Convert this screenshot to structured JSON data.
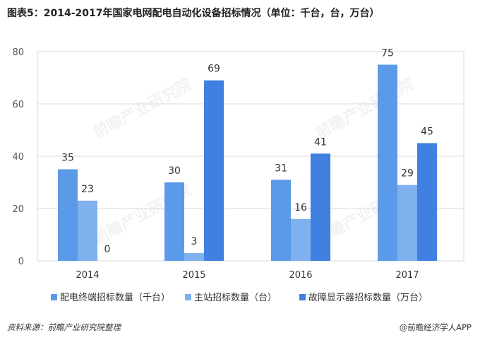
{
  "title": "图表5：2014-2017年国家电网配电自动化设备招标情况（单位：千台，台，万台）",
  "footer": {
    "source": "资料来源：前瞻产业研究院整理",
    "brand": "@前瞻经济学人APP"
  },
  "watermark": "前瞻产业研究院",
  "chart_data": {
    "type": "bar",
    "categories": [
      "2014",
      "2015",
      "2016",
      "2017"
    ],
    "series": [
      {
        "name": "配电终端招标数量（千台）",
        "values": [
          35,
          30,
          31,
          75
        ],
        "color": "#5b9ae8"
      },
      {
        "name": "主站招标数量（台）",
        "values": [
          23,
          3,
          16,
          29
        ],
        "color": "#7eb1ee"
      },
      {
        "name": "故障显示器招标数量（万台）",
        "values": [
          0,
          69,
          41,
          45
        ],
        "color": "#3f80e0"
      }
    ],
    "ylim": [
      0,
      80
    ],
    "yticks": [
      "0",
      "20",
      "40",
      "60",
      "80"
    ],
    "grid": true,
    "legend": "bottom"
  }
}
